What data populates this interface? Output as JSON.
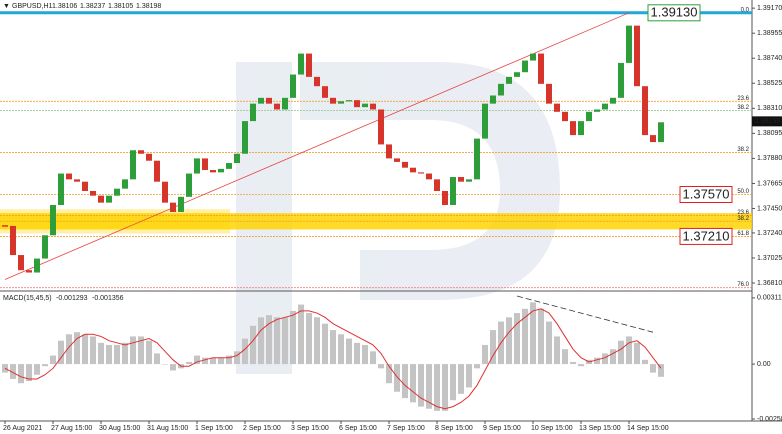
{
  "chart_data": [
    {
      "type": "candlestick",
      "title": "GBPUSD,H1",
      "quote": [
        1.38106,
        1.38237,
        1.38105,
        1.38198
      ],
      "values": [
        1.373,
        1.3705,
        1.3692,
        1.369,
        1.3702,
        1.3722,
        1.3748,
        1.3775,
        1.377,
        1.3768,
        1.376,
        1.3756,
        1.375,
        1.3756,
        1.3762,
        1.377,
        1.3795,
        1.3792,
        1.3786,
        1.3768,
        1.375,
        1.3742,
        1.3755,
        1.3775,
        1.3788,
        1.3778,
        1.3776,
        1.3779,
        1.3784,
        1.3792,
        1.382,
        1.3835,
        1.384,
        1.3835,
        1.383,
        1.384,
        1.386,
        1.3878,
        1.3858,
        1.385,
        1.384,
        1.3835,
        1.3837,
        1.3838,
        1.3832,
        1.3835,
        1.383,
        1.38,
        1.3788,
        1.3785,
        1.378,
        1.3776,
        1.3775,
        1.377,
        1.376,
        1.3748,
        1.3772,
        1.3768,
        1.377,
        1.3805,
        1.3835,
        1.3842,
        1.3852,
        1.3858,
        1.3862,
        1.3872,
        1.3878,
        1.3852,
        1.3835,
        1.3828,
        1.382,
        1.3808,
        1.382,
        1.3828,
        1.383,
        1.3835,
        1.384,
        1.387,
        1.3902,
        1.385,
        1.3808,
        1.3802,
        1.3819
      ],
      "up_color": "#2e9e3a",
      "down_color": "#d6352b",
      "ylim": [
        1.3675,
        1.3924
      ],
      "yticks": [
        {
          "value": 1.3917,
          "label": "1.39170"
        },
        1.38955,
        {
          "value": 1.3874,
          "label": "1.38740"
        },
        1.38525,
        {
          "value": 1.3831,
          "label": "1.38310"
        },
        1.38095,
        {
          "value": 1.3788,
          "label": "1.37880"
        },
        1.37665,
        {
          "value": 1.3745,
          "label": "1.37450"
        },
        {
          "value": 1.3724,
          "label": "1.37240"
        },
        1.37025,
        {
          "value": 1.3681,
          "label": "1.36810"
        }
      ],
      "zone": [
        1.3727,
        1.3741
      ],
      "zone_color": "#ffd400",
      "levels": [
        {
          "label": "0.0",
          "value": 1.3913,
          "color": "#1fa8d8"
        },
        {
          "label": "23.6",
          "value": 1.3837,
          "color": "#f0a030"
        },
        {
          "label": "38.2",
          "value": 1.3829,
          "color": "#8fbf8f"
        },
        {
          "label": "38.2",
          "value": 1.3793,
          "color": "#f0a030"
        },
        {
          "label": "50.0",
          "value": 1.3757,
          "color": "#f0a030"
        },
        {
          "label": "23.6",
          "value": 1.3739,
          "color": "#f0a030"
        },
        {
          "label": "38.2",
          "value": 1.3734,
          "color": "#f0a030"
        },
        {
          "label": "61.8",
          "value": 1.3721,
          "color": "#f0a030"
        },
        {
          "label": "76.0",
          "value": 1.3677,
          "color": "#f08080"
        }
      ],
      "price_labels": [
        {
          "value": 1.3913,
          "label": "1.39130",
          "color": "#2e9e3a"
        },
        {
          "value": 1.3757,
          "label": "1.37570",
          "color": "#e02020"
        },
        {
          "value": 1.3721,
          "label": "1.37210",
          "color": "#e02020"
        }
      ],
      "trend_line": {
        "from": [
          0,
          1.3684
        ],
        "to": [
          78,
          1.3913
        ],
        "color": "#e84040"
      }
    },
    {
      "type": "macd",
      "title": "MACD(15,45,5)",
      "readings": [
        -0.001293,
        -0.001356
      ],
      "categories": [
        null,
        null,
        "26 Aug 2021",
        null,
        null,
        null,
        null,
        null,
        "27 Aug 15:00",
        null,
        null,
        null,
        null,
        null,
        "30 Aug 15:00",
        null,
        null,
        null,
        null,
        null,
        "31 Aug 15:00",
        null,
        null,
        null,
        null,
        null,
        "1 Sep 15:00",
        null,
        null,
        null,
        null,
        null,
        "2 Sep 15:00",
        null,
        null,
        null,
        null,
        null,
        "3 Sep 15:00",
        null,
        null,
        null,
        null,
        null,
        "6 Sep 15:00",
        null,
        null,
        null,
        null,
        null,
        "7 Sep 15:00",
        null,
        null,
        null,
        null,
        null,
        "8 Sep 15:00",
        null,
        null,
        null,
        null,
        null,
        "9 Sep 15:00",
        null,
        null,
        null,
        null,
        null,
        "10 Sep 15:00",
        null,
        null,
        null,
        null,
        null,
        "13 Sep 15:00",
        null,
        null,
        null,
        null,
        null,
        "14 Sep 15:00",
        null,
        null
      ],
      "histogram": [
        -0.0004,
        -0.0007,
        -0.0009,
        -0.0008,
        -0.0005,
        -0.0001,
        0.0004,
        0.0011,
        0.0014,
        0.0015,
        0.0014,
        0.0013,
        0.001,
        0.0009,
        0.0009,
        0.001,
        0.0013,
        0.0013,
        0.0011,
        0.0005,
        0.0,
        -0.0003,
        -0.0002,
        0.0001,
        0.0004,
        0.0003,
        0.0003,
        0.0003,
        0.0004,
        0.0006,
        0.0012,
        0.0018,
        0.0022,
        0.0023,
        0.0022,
        0.0022,
        0.0025,
        0.0028,
        0.0024,
        0.0022,
        0.0019,
        0.0016,
        0.0014,
        0.0012,
        0.001,
        0.0009,
        0.0006,
        -0.0002,
        -0.0009,
        -0.0013,
        -0.0016,
        -0.0018,
        -0.002,
        -0.0021,
        -0.0022,
        -0.0022,
        -0.0017,
        -0.0014,
        -0.0011,
        -0.0002,
        0.0009,
        0.0016,
        0.002,
        0.0022,
        0.0024,
        0.0026,
        0.0029,
        0.0026,
        0.002,
        0.0013,
        0.0007,
        0.0001,
        -0.0001,
        0.0002,
        0.0003,
        0.0005,
        0.0007,
        0.0011,
        0.0013,
        0.001,
        0.0002,
        -0.0004,
        -0.0006
      ],
      "signal": [
        -0.0002,
        -0.0004,
        -0.0006,
        -0.0007,
        -0.0007,
        -0.0005,
        -0.0002,
        0.0003,
        0.0008,
        0.0012,
        0.0014,
        0.0014,
        0.0013,
        0.0011,
        0.001,
        0.0009,
        0.001,
        0.0011,
        0.0012,
        0.001,
        0.0006,
        0.0002,
        -0.0001,
        -0.0001,
        0.0001,
        0.0002,
        0.0003,
        0.0003,
        0.0003,
        0.0004,
        0.0007,
        0.0011,
        0.0016,
        0.0019,
        0.0021,
        0.0022,
        0.0023,
        0.0025,
        0.0025,
        0.0024,
        0.0022,
        0.0019,
        0.0017,
        0.0015,
        0.0013,
        0.0011,
        0.0009,
        0.0005,
        -0.0001,
        -0.0006,
        -0.001,
        -0.0013,
        -0.0016,
        -0.0018,
        -0.002,
        -0.0021,
        -0.002,
        -0.0018,
        -0.0015,
        -0.001,
        -0.0003,
        0.0004,
        0.001,
        0.0015,
        0.0019,
        0.0022,
        0.0025,
        0.0026,
        0.0024,
        0.0019,
        0.0013,
        0.0007,
        0.0003,
        0.0001,
        0.0002,
        0.0003,
        0.0005,
        0.0007,
        0.001,
        0.0011,
        0.0008,
        0.0003,
        -0.0002
      ],
      "histogram_color": "#c4c4c4",
      "signal_color": "#e03030",
      "ylim": [
        -0.00263,
        0.00339
      ],
      "yticks": [
        0.003113,
        {
          "value": 0,
          "label": "0.00"
        },
        -0.002583
      ],
      "divergence_line": {
        "from": [
          64,
          0.0032
        ],
        "to": [
          81,
          0.0015
        ]
      }
    }
  ]
}
